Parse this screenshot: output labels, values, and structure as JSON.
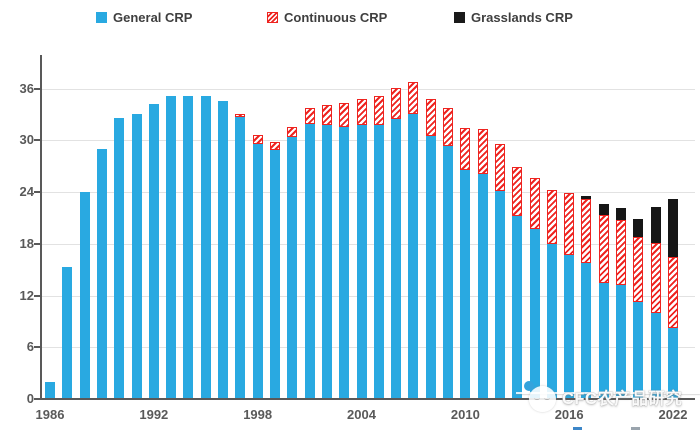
{
  "legend": {
    "items": [
      {
        "label": "General CRP",
        "swatch": "solid-blue"
      },
      {
        "label": "Continuous CRP",
        "swatch": "hatched-red"
      },
      {
        "label": "Grasslands CRP",
        "swatch": "solid-black"
      }
    ]
  },
  "colors": {
    "general_blue": "#29a9e1",
    "continuous_red": "#ee2420",
    "grasslands_black": "#161616",
    "axis": "#595959",
    "gridline": "#e2e2e2"
  },
  "watermark": {
    "text": "CFC农产品研究"
  },
  "chart_data": {
    "type": "bar",
    "stacked": true,
    "title": "",
    "xlabel": "",
    "ylabel": "",
    "ylim": [
      0,
      38
    ],
    "y_ticks": [
      0,
      6,
      12,
      18,
      24,
      30,
      36
    ],
    "x_ticks": [
      1986,
      1992,
      1998,
      2004,
      2010,
      2016,
      2022
    ],
    "grid": true,
    "legend_position": "top",
    "years": [
      1986,
      1987,
      1988,
      1989,
      1990,
      1991,
      1992,
      1993,
      1994,
      1995,
      1996,
      1997,
      1998,
      1999,
      2000,
      2001,
      2002,
      2003,
      2004,
      2005,
      2006,
      2007,
      2008,
      2009,
      2010,
      2011,
      2012,
      2013,
      2014,
      2015,
      2016,
      2017,
      2018,
      2019,
      2020,
      2021,
      2022
    ],
    "series": [
      {
        "name": "General CRP",
        "style": "general",
        "values": [
          2.0,
          15.3,
          24.0,
          29.0,
          32.6,
          33.1,
          34.2,
          35.1,
          35.1,
          35.1,
          34.6,
          32.7,
          29.6,
          28.9,
          30.4,
          31.9,
          31.8,
          31.6,
          31.8,
          31.8,
          32.5,
          33.0,
          30.5,
          29.4,
          26.6,
          26.1,
          24.1,
          21.2,
          19.7,
          18.0,
          16.7,
          15.8,
          13.4,
          13.2,
          11.2,
          10.0,
          8.2
        ]
      },
      {
        "name": "Continuous CRP",
        "style": "continuous",
        "values": [
          0,
          0,
          0,
          0,
          0,
          0,
          0,
          0,
          0,
          0,
          0,
          0.4,
          1.0,
          0.9,
          1.1,
          1.8,
          2.3,
          2.7,
          3.0,
          3.3,
          3.6,
          3.8,
          4.3,
          4.4,
          4.8,
          5.2,
          5.5,
          5.7,
          5.9,
          6.3,
          7.2,
          7.4,
          7.9,
          7.6,
          7.6,
          8.1,
          8.3
        ]
      },
      {
        "name": "Grasslands CRP",
        "style": "grasslands",
        "values": [
          0,
          0,
          0,
          0,
          0,
          0,
          0,
          0,
          0,
          0,
          0,
          0,
          0,
          0,
          0,
          0,
          0,
          0,
          0,
          0,
          0,
          0,
          0,
          0,
          0,
          0,
          0,
          0,
          0,
          0,
          0,
          0.3,
          1.3,
          1.4,
          2.1,
          4.2,
          6.7
        ]
      }
    ]
  }
}
